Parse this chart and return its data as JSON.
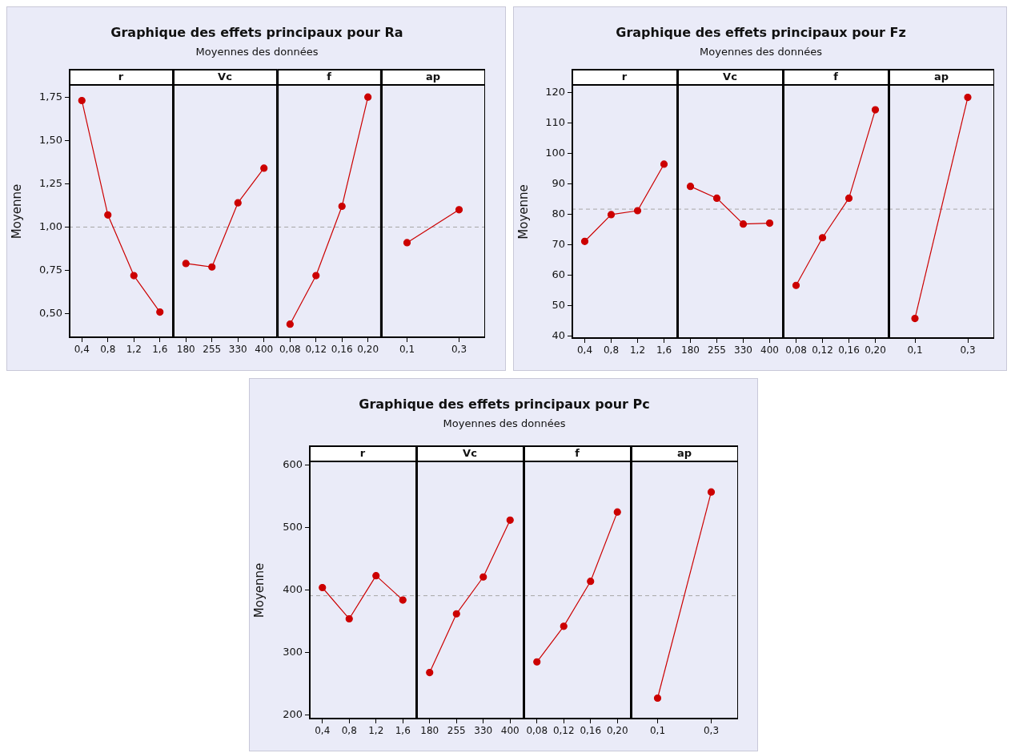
{
  "chart_data": [
    {
      "type": "line",
      "title": "Graphique des effets principaux pour Ra\nMoyennes des données",
      "ylabel": "Moyenne",
      "xlabel": "r",
      "categories": [
        "0,4",
        "0,8",
        "1,2",
        "1,6"
      ],
      "values": [
        1.73,
        1.07,
        0.72,
        0.51
      ],
      "color": "#cc0000",
      "marker": "circle",
      "ylim": [
        0.36,
        1.82
      ],
      "yticks": [
        {
          "value": 0.5,
          "label": "0,50"
        },
        {
          "value": 0.75,
          "label": "0,75"
        },
        {
          "value": 1,
          "label": "1,00"
        },
        {
          "value": 1.25,
          "label": "1,25"
        },
        {
          "value": 1.5,
          "label": "1,50"
        },
        {
          "value": 1.75,
          "label": "1,75"
        }
      ],
      "ref_lines": [
        {
          "axis": "y",
          "value": 1.0,
          "color": "#a6a6a6",
          "line_style": "dashed"
        }
      ]
    },
    {
      "type": "line",
      "xlabel": "Vc",
      "categories": [
        "180",
        "255",
        "330",
        "400"
      ],
      "values": [
        0.79,
        0.77,
        1.14,
        1.34
      ],
      "color": "#cc0000",
      "marker": "circle",
      "tick_labels": "x",
      "ylim": [
        0.36,
        1.82
      ],
      "yticks": [
        0.5,
        0.75,
        1,
        1.25,
        1.5,
        1.75
      ],
      "ref_lines": [
        {
          "axis": "y",
          "value": 1.0,
          "color": "#a6a6a6",
          "line_style": "dashed"
        }
      ]
    },
    {
      "type": "line",
      "xlabel": "f",
      "categories": [
        "0,08",
        "0,12",
        "0,16",
        "0,20"
      ],
      "values": [
        0.44,
        0.72,
        1.12,
        1.75
      ],
      "color": "#cc0000",
      "marker": "circle",
      "tick_labels": "x",
      "ylim": [
        0.36,
        1.82
      ],
      "yticks": [
        0.5,
        0.75,
        1,
        1.25,
        1.5,
        1.75
      ],
      "ref_lines": [
        {
          "axis": "y",
          "value": 1.0,
          "color": "#a6a6a6",
          "line_style": "dashed"
        }
      ]
    },
    {
      "type": "line",
      "xlabel": "ap",
      "categories": [
        "0,1",
        "0,3"
      ],
      "values": [
        0.91,
        1.1
      ],
      "color": "#cc0000",
      "marker": "circle",
      "tick_labels": "x",
      "ylim": [
        0.36,
        1.82
      ],
      "yticks": [
        0.5,
        0.75,
        1,
        1.25,
        1.5,
        1.75
      ],
      "ref_lines": [
        {
          "axis": "y",
          "value": 1.0,
          "color": "#a6a6a6",
          "line_style": "dashed"
        }
      ]
    },
    {
      "type": "line",
      "title": "Graphique des effets principaux pour Fz\nMoyennes des données",
      "ylabel": "Moyenne",
      "xlabel": "r",
      "categories": [
        "0,4",
        "0,8",
        "1,2",
        "1,6"
      ],
      "values": [
        71.1,
        79.9,
        81.2,
        96.5
      ],
      "color": "#cc0000",
      "marker": "circle",
      "ylim": [
        39,
        122.6
      ],
      "yticks": [
        40,
        50,
        60,
        70,
        80,
        90,
        100,
        110,
        120
      ],
      "ref_lines": [
        {
          "axis": "y",
          "value": 81.7,
          "color": "#a6a6a6",
          "line_style": "dashed"
        }
      ]
    },
    {
      "type": "line",
      "xlabel": "Vc",
      "categories": [
        "180",
        "255",
        "330",
        "400"
      ],
      "values": [
        89.2,
        85.3,
        76.8,
        77.1
      ],
      "color": "#cc0000",
      "marker": "circle",
      "tick_labels": "x",
      "ylim": [
        39,
        122.6
      ],
      "yticks": [
        40,
        50,
        60,
        70,
        80,
        90,
        100,
        110,
        120
      ],
      "ref_lines": [
        {
          "axis": "y",
          "value": 81.7,
          "color": "#a6a6a6",
          "line_style": "dashed"
        }
      ]
    },
    {
      "type": "line",
      "xlabel": "f",
      "categories": [
        "0,08",
        "0,12",
        "0,16",
        "0,20"
      ],
      "values": [
        56.6,
        72.3,
        85.3,
        114.4
      ],
      "color": "#cc0000",
      "marker": "circle",
      "tick_labels": "x",
      "ylim": [
        39,
        122.6
      ],
      "yticks": [
        40,
        50,
        60,
        70,
        80,
        90,
        100,
        110,
        120
      ],
      "ref_lines": [
        {
          "axis": "y",
          "value": 81.7,
          "color": "#a6a6a6",
          "line_style": "dashed"
        }
      ]
    },
    {
      "type": "line",
      "xlabel": "ap",
      "categories": [
        "0,1",
        "0,3"
      ],
      "values": [
        45.7,
        118.5
      ],
      "color": "#cc0000",
      "marker": "circle",
      "tick_labels": "x",
      "ylim": [
        39,
        122.6
      ],
      "yticks": [
        40,
        50,
        60,
        70,
        80,
        90,
        100,
        110,
        120
      ],
      "ref_lines": [
        {
          "axis": "y",
          "value": 81.7,
          "color": "#a6a6a6",
          "line_style": "dashed"
        }
      ]
    },
    {
      "type": "line",
      "title": "Graphique des effets principaux pour Pc\nMoyennes des données",
      "ylabel": "Moyenne",
      "xlabel": "r",
      "categories": [
        "0,4",
        "0,8",
        "1,2",
        "1,6"
      ],
      "values": [
        404,
        354,
        423,
        384
      ],
      "color": "#cc0000",
      "marker": "circle",
      "ylim": [
        193,
        606
      ],
      "yticks": [
        200,
        300,
        400,
        500,
        600
      ],
      "ref_lines": [
        {
          "axis": "y",
          "value": 391,
          "color": "#a6a6a6",
          "line_style": "dashed"
        }
      ]
    },
    {
      "type": "line",
      "xlabel": "Vc",
      "categories": [
        "180",
        "255",
        "330",
        "400"
      ],
      "values": [
        268,
        362,
        421,
        512
      ],
      "color": "#cc0000",
      "marker": "circle",
      "tick_labels": "x",
      "ylim": [
        193,
        606
      ],
      "yticks": [
        200,
        300,
        400,
        500,
        600
      ],
      "ref_lines": [
        {
          "axis": "y",
          "value": 391,
          "color": "#a6a6a6",
          "line_style": "dashed"
        }
      ]
    },
    {
      "type": "line",
      "xlabel": "f",
      "categories": [
        "0,08",
        "0,12",
        "0,16",
        "0,20"
      ],
      "values": [
        285,
        342,
        414,
        525
      ],
      "color": "#cc0000",
      "marker": "circle",
      "tick_labels": "x",
      "ylim": [
        193,
        606
      ],
      "yticks": [
        200,
        300,
        400,
        500,
        600
      ],
      "ref_lines": [
        {
          "axis": "y",
          "value": 391,
          "color": "#a6a6a6",
          "line_style": "dashed"
        }
      ]
    },
    {
      "type": "line",
      "xlabel": "ap",
      "categories": [
        "0,1",
        "0,3"
      ],
      "values": [
        227,
        557
      ],
      "color": "#cc0000",
      "marker": "circle",
      "tick_labels": "x",
      "ylim": [
        193,
        606
      ],
      "yticks": [
        200,
        300,
        400,
        500,
        600
      ],
      "ref_lines": [
        {
          "axis": "y",
          "value": 391,
          "color": "#a6a6a6",
          "line_style": "dashed"
        }
      ]
    }
  ]
}
